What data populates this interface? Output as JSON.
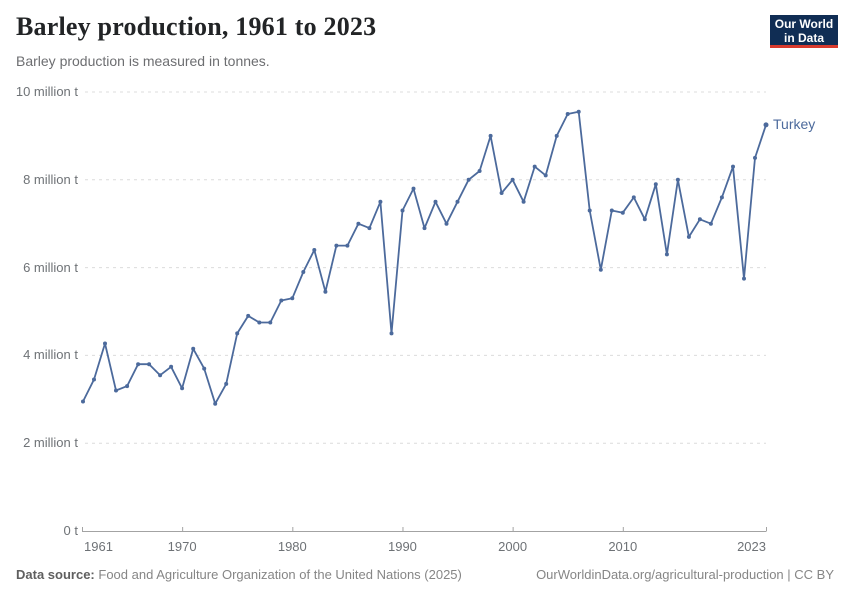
{
  "header": {
    "title": "Barley production, 1961 to 2023",
    "subtitle": "Barley production is measured in tonnes."
  },
  "logo": {
    "line1": "Our World",
    "line2": "in Data",
    "bg_color": "#102d54",
    "bar_color": "#d93a2d"
  },
  "footer": {
    "source_label": "Data source:",
    "source_text": "Food and Agriculture Organization of the United Nations (2025)",
    "credit": "OurWorldinData.org/agricultural-production | CC BY"
  },
  "chart_data": {
    "type": "line",
    "title": "Barley production, 1961 to 2023",
    "unit": "tonnes",
    "xlabel": "",
    "ylabel": "",
    "ylim": [
      0,
      10000000
    ],
    "grid": true,
    "gridline_color": "#dcdcdc",
    "axis_color": "#a3a3a3",
    "legend_position": "end-of-line",
    "yticks": [
      {
        "value": 0,
        "label": "0 t"
      },
      {
        "value": 2000000,
        "label": "2 million t"
      },
      {
        "value": 4000000,
        "label": "4 million t"
      },
      {
        "value": 6000000,
        "label": "6 million t"
      },
      {
        "value": 8000000,
        "label": "8 million t"
      },
      {
        "value": 10000000,
        "label": "10 million t"
      }
    ],
    "xticks": [
      {
        "year": 1961,
        "label": "1961",
        "align": "start",
        "tick": false
      },
      {
        "year": 1970,
        "label": "1970",
        "align": "middle",
        "tick": true
      },
      {
        "year": 1980,
        "label": "1980",
        "align": "middle",
        "tick": true
      },
      {
        "year": 1990,
        "label": "1990",
        "align": "middle",
        "tick": true
      },
      {
        "year": 2000,
        "label": "2000",
        "align": "middle",
        "tick": true
      },
      {
        "year": 2010,
        "label": "2010",
        "align": "middle",
        "tick": true
      },
      {
        "year": 2023,
        "label": "2023",
        "align": "end",
        "tick": true
      }
    ],
    "x": [
      1961,
      1962,
      1963,
      1964,
      1965,
      1966,
      1967,
      1968,
      1969,
      1970,
      1971,
      1972,
      1973,
      1974,
      1975,
      1976,
      1977,
      1978,
      1979,
      1980,
      1981,
      1982,
      1983,
      1984,
      1985,
      1986,
      1987,
      1988,
      1989,
      1990,
      1991,
      1992,
      1993,
      1994,
      1995,
      1996,
      1997,
      1998,
      1999,
      2000,
      2001,
      2002,
      2003,
      2004,
      2005,
      2006,
      2007,
      2008,
      2009,
      2010,
      2011,
      2012,
      2013,
      2014,
      2015,
      2016,
      2017,
      2018,
      2019,
      2020,
      2021,
      2022,
      2023
    ],
    "series": [
      {
        "name": "Turkey",
        "color": "#4c6a9c",
        "values": [
          2950000,
          3450000,
          4270000,
          3200000,
          3300000,
          3800000,
          3800000,
          3550000,
          3740000,
          3250000,
          4150000,
          3700000,
          2900000,
          3350000,
          4500000,
          4900000,
          4750000,
          4750000,
          5250000,
          5300000,
          5900000,
          6400000,
          5450000,
          6500000,
          6500000,
          7000000,
          6900000,
          7500000,
          4500000,
          7300000,
          7800000,
          6900000,
          7500000,
          7000000,
          7500000,
          8000000,
          8200000,
          9000000,
          7700000,
          8000000,
          7500000,
          8300000,
          8100000,
          9000000,
          9500000,
          9550000,
          7300000,
          5950000,
          7300000,
          7250000,
          7600000,
          7100000,
          7900000,
          6300000,
          8000000,
          6700000,
          7100000,
          7000000,
          7600000,
          8300000,
          5750000,
          8500000,
          9250000
        ]
      }
    ]
  }
}
